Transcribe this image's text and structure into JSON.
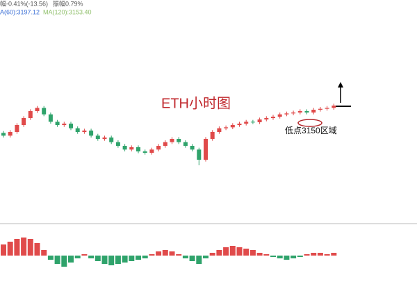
{
  "chart_data": [
    {
      "type": "candlestick",
      "header": [
        "幅-0.41%(-13.56)",
        "振幅0.79%"
      ],
      "ma_labels": [
        {
          "name": "A(60):3197.12",
          "color": "#3b6fd6"
        },
        {
          "name": "MA(120):3153.40",
          "color": "#8fbf6a"
        }
      ],
      "title": "ETH小时图",
      "annotation": "低点3150区域",
      "up_color": "#e04a4a",
      "down_color": "#2fa36b",
      "ylim": [
        2957,
        3407
      ],
      "open": [
        3150,
        3144,
        3152,
        3167,
        3182,
        3197,
        3204,
        3190,
        3174,
        3167,
        3170,
        3160,
        3152,
        3155,
        3144,
        3137,
        3140,
        3130,
        3122,
        3114,
        3119,
        3110,
        3107,
        3114,
        3122,
        3130,
        3137,
        3130,
        3122,
        3114,
        3092,
        3137,
        3152,
        3160,
        3162,
        3167,
        3170,
        3174,
        3173,
        3179,
        3182,
        3185,
        3190,
        3192,
        3194,
        3197,
        3194,
        3200,
        3202,
        3204
      ],
      "high": [
        3154,
        3156,
        3171,
        3186,
        3201,
        3208,
        3208,
        3194,
        3178,
        3174,
        3174,
        3164,
        3159,
        3159,
        3148,
        3144,
        3144,
        3134,
        3126,
        3123,
        3123,
        3114,
        3118,
        3126,
        3134,
        3141,
        3141,
        3134,
        3126,
        3118,
        3141,
        3156,
        3164,
        3166,
        3171,
        3174,
        3178,
        3178,
        3183,
        3186,
        3189,
        3194,
        3196,
        3198,
        3201,
        3201,
        3204,
        3206,
        3208,
        3213
      ],
      "low": [
        3140,
        3140,
        3148,
        3163,
        3178,
        3193,
        3186,
        3170,
        3163,
        3163,
        3156,
        3148,
        3148,
        3140,
        3133,
        3133,
        3126,
        3118,
        3110,
        3110,
        3106,
        3103,
        3103,
        3110,
        3118,
        3126,
        3126,
        3118,
        3110,
        3080,
        3088,
        3133,
        3148,
        3156,
        3158,
        3163,
        3166,
        3169,
        3169,
        3175,
        3178,
        3181,
        3186,
        3188,
        3190,
        3190,
        3190,
        3196,
        3198,
        3200
      ],
      "close": [
        3144,
        3152,
        3167,
        3182,
        3197,
        3204,
        3190,
        3174,
        3167,
        3170,
        3160,
        3152,
        3155,
        3144,
        3137,
        3140,
        3130,
        3122,
        3114,
        3119,
        3110,
        3107,
        3114,
        3122,
        3130,
        3137,
        3130,
        3122,
        3114,
        3092,
        3137,
        3152,
        3160,
        3162,
        3167,
        3170,
        3174,
        3173,
        3179,
        3182,
        3185,
        3190,
        3192,
        3194,
        3197,
        3194,
        3200,
        3202,
        3204,
        3209
      ]
    },
    {
      "type": "bar",
      "ylim": [
        -16,
        16
      ],
      "up_color": "#e04a4a",
      "down_color": "#2fa36b",
      "values": [
        8,
        10,
        12,
        13,
        12,
        9,
        4,
        -3,
        -6,
        -8,
        -5,
        -2,
        1,
        -2,
        -4,
        -6,
        -7,
        -6,
        -5,
        -4,
        -3,
        -2,
        1,
        3,
        4,
        3,
        1,
        -2,
        -4,
        -6,
        -2,
        2,
        4,
        6,
        7,
        6,
        5,
        4,
        2,
        1,
        -1,
        -2,
        -3,
        -2,
        -1,
        1,
        2,
        2,
        1,
        2
      ]
    }
  ]
}
